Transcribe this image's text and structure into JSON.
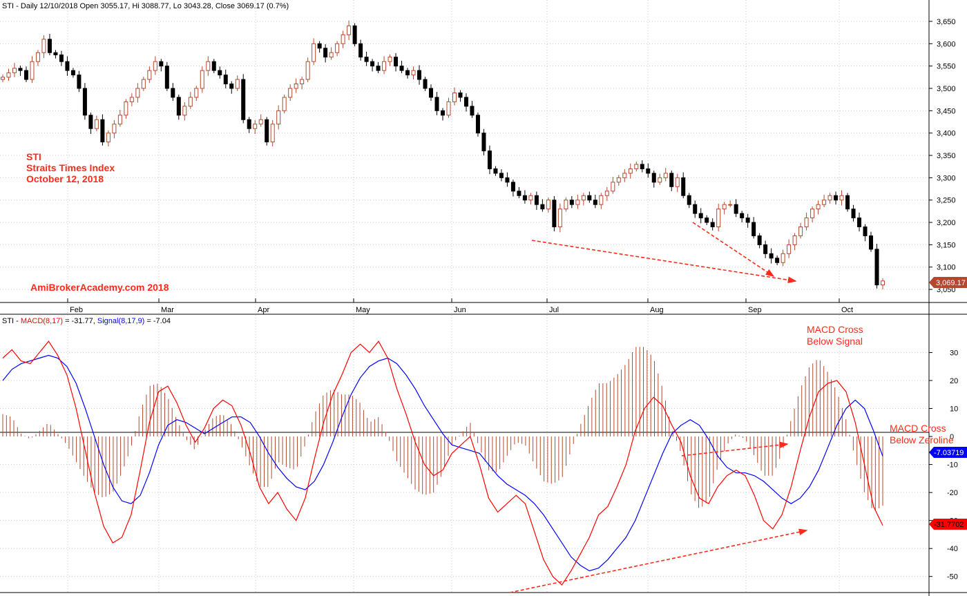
{
  "header": {
    "price_title": "STI - Daily 12/10/2018 Open 3055.17, Hi 3088.77, Lo 3043.28, Close 3069.17 (0.7%)",
    "macd_prefix": "STI - ",
    "macd_name": "MACD(8,17)",
    "macd_value": " = -31.77, ",
    "signal_name": "Signal(8,17,9)",
    "signal_value": " = -7.04"
  },
  "annotations": {
    "sti_lines": [
      "STI",
      "Straits Times Index",
      "October 12, 2018"
    ],
    "watermark": "AmiBrokerAcademy.com  2018",
    "macd_cross_signal": [
      "MACD Cross",
      "Below Signal"
    ],
    "macd_cross_zero": [
      "MACD Cross",
      "Below Zeroline"
    ]
  },
  "colors": {
    "up": "#b5472e",
    "down": "#000000",
    "macd": "#ff0000",
    "signal": "#0000ff",
    "histogram": "#b5472e",
    "annotation": "#ff2a1a"
  },
  "chart_data": [
    {
      "type": "candlestick",
      "months": [
        "Feb",
        "Mar",
        "Apr",
        "May",
        "Jun",
        "Jul",
        "Aug",
        "Sep",
        "Oct"
      ],
      "ylim": [
        3030,
        3670
      ],
      "yticks": [
        3050,
        3100,
        3150,
        3200,
        3250,
        3300,
        3350,
        3400,
        3450,
        3500,
        3550,
        3600,
        3650
      ],
      "last_close_label": "3,069.17",
      "last_close": 3069.17,
      "close_path": [
        3525,
        3535,
        3545,
        3540,
        3520,
        3560,
        3580,
        3610,
        3580,
        3575,
        3560,
        3540,
        3530,
        3500,
        3440,
        3410,
        3430,
        3380,
        3400,
        3420,
        3440,
        3470,
        3480,
        3500,
        3520,
        3540,
        3560,
        3550,
        3500,
        3480,
        3440,
        3460,
        3480,
        3500,
        3540,
        3560,
        3540,
        3530,
        3510,
        3500,
        3520,
        3430,
        3410,
        3420,
        3430,
        3380,
        3420,
        3450,
        3480,
        3500,
        3510,
        3520,
        3560,
        3600,
        3590,
        3570,
        3580,
        3600,
        3620,
        3640,
        3600,
        3570,
        3560,
        3550,
        3540,
        3560,
        3570,
        3550,
        3540,
        3530,
        3540,
        3520,
        3500,
        3480,
        3450,
        3440,
        3470,
        3490,
        3480,
        3460,
        3440,
        3400,
        3360,
        3320,
        3310,
        3300,
        3290,
        3270,
        3260,
        3250,
        3260,
        3240,
        3230,
        3250,
        3190,
        3230,
        3250,
        3240,
        3250,
        3260,
        3250,
        3240,
        3260,
        3270,
        3290,
        3300,
        3310,
        3320,
        3330,
        3320,
        3310,
        3290,
        3300,
        3310,
        3280,
        3300,
        3260,
        3240,
        3220,
        3210,
        3200,
        3190,
        3230,
        3240,
        3240,
        3220,
        3210,
        3200,
        3170,
        3150,
        3130,
        3120,
        3110,
        3130,
        3150,
        3170,
        3190,
        3210,
        3230,
        3240,
        3250,
        3260,
        3250,
        3260,
        3230,
        3210,
        3190,
        3170,
        3140,
        3060,
        3069
      ]
    },
    {
      "type": "line",
      "ylim": [
        -55,
        38
      ],
      "yticks": [
        30,
        20,
        10,
        0,
        -10,
        -20,
        -30,
        -40,
        -50
      ],
      "macd_label": "-31.7702",
      "signal_label": "-7.03719",
      "macd_last": -31.77,
      "signal_last": -7.04,
      "series": [
        {
          "name": "MACD(8,17)",
          "values": [
            28,
            31,
            27,
            26,
            30,
            34,
            29,
            22,
            10,
            -5,
            -20,
            -32,
            -38,
            -36,
            -28,
            -12,
            5,
            16,
            18,
            12,
            4,
            -2,
            3,
            10,
            13,
            11,
            4,
            -6,
            -18,
            -24,
            -20,
            -26,
            -30,
            -22,
            -8,
            5,
            15,
            22,
            30,
            33,
            30,
            34,
            28,
            17,
            8,
            -2,
            -10,
            -14,
            -12,
            -6,
            -3,
            0,
            -10,
            -22,
            -27,
            -24,
            -21,
            -24,
            -34,
            -44,
            -50,
            -53,
            -48,
            -42,
            -36,
            -28,
            -25,
            -18,
            -10,
            2,
            10,
            14,
            11,
            4,
            -2,
            -14,
            -22,
            -24,
            -18,
            -14,
            -12,
            -14,
            -21,
            -30,
            -33,
            -28,
            -18,
            -5,
            7,
            16,
            19,
            20,
            16,
            5,
            -10,
            -25,
            -31.77
          ]
        },
        {
          "name": "Signal(8,17,9)",
          "values": [
            20,
            24,
            26,
            27,
            28,
            29,
            28,
            25,
            19,
            10,
            0,
            -10,
            -18,
            -23,
            -24,
            -21,
            -13,
            -3,
            4,
            6,
            5,
            3,
            1,
            3,
            5,
            7,
            7,
            5,
            0,
            -6,
            -11,
            -15,
            -18,
            -19,
            -16,
            -10,
            -2,
            7,
            15,
            21,
            25,
            27,
            28,
            26,
            22,
            17,
            11,
            6,
            1,
            -3,
            -4,
            -5,
            -6,
            -10,
            -14,
            -17,
            -19,
            -21,
            -24,
            -28,
            -33,
            -38,
            -43,
            -46,
            -48,
            -47,
            -44,
            -40,
            -36,
            -30,
            -22,
            -14,
            -6,
            1,
            4,
            6,
            4,
            -1,
            -7,
            -11,
            -13,
            -13,
            -14,
            -16,
            -19,
            -22,
            -24,
            -22,
            -18,
            -12,
            -4,
            4,
            10,
            13,
            10,
            2,
            -7.04
          ]
        }
      ]
    }
  ]
}
